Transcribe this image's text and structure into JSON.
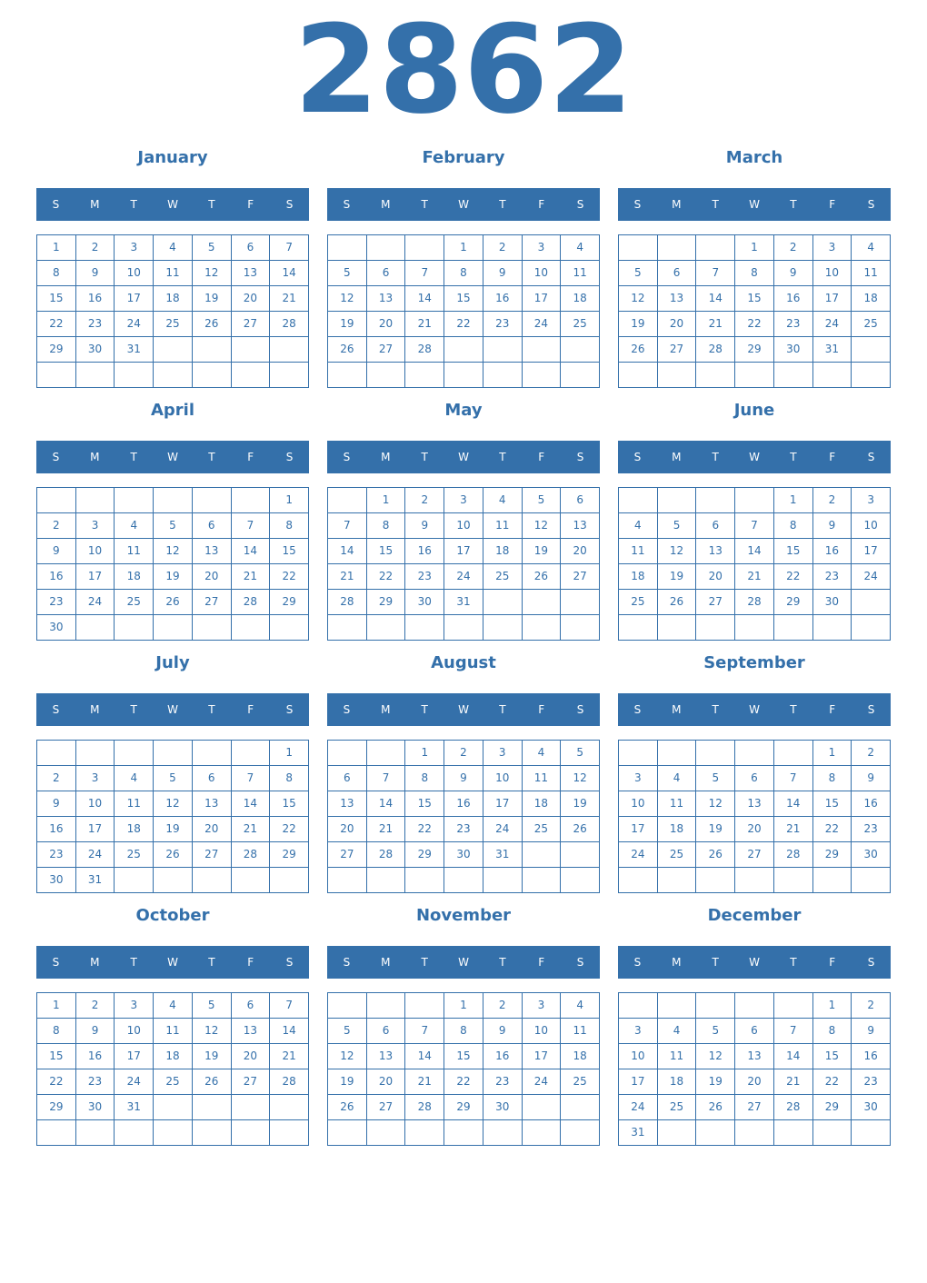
{
  "year": "2862",
  "weekday_labels": [
    "S",
    "M",
    "T",
    "W",
    "T",
    "F",
    "S"
  ],
  "colors": {
    "accent": "#3470aa",
    "header_text": "#ffffff"
  },
  "months": [
    {
      "name": "January",
      "first_weekday": 0,
      "days": 31
    },
    {
      "name": "February",
      "first_weekday": 3,
      "days": 28
    },
    {
      "name": "March",
      "first_weekday": 3,
      "days": 31
    },
    {
      "name": "April",
      "first_weekday": 6,
      "days": 30
    },
    {
      "name": "May",
      "first_weekday": 1,
      "days": 31
    },
    {
      "name": "June",
      "first_weekday": 4,
      "days": 30
    },
    {
      "name": "July",
      "first_weekday": 6,
      "days": 31
    },
    {
      "name": "August",
      "first_weekday": 2,
      "days": 31
    },
    {
      "name": "September",
      "first_weekday": 5,
      "days": 30
    },
    {
      "name": "October",
      "first_weekday": 0,
      "days": 31
    },
    {
      "name": "November",
      "first_weekday": 3,
      "days": 30
    },
    {
      "name": "December",
      "first_weekday": 5,
      "days": 31
    }
  ]
}
